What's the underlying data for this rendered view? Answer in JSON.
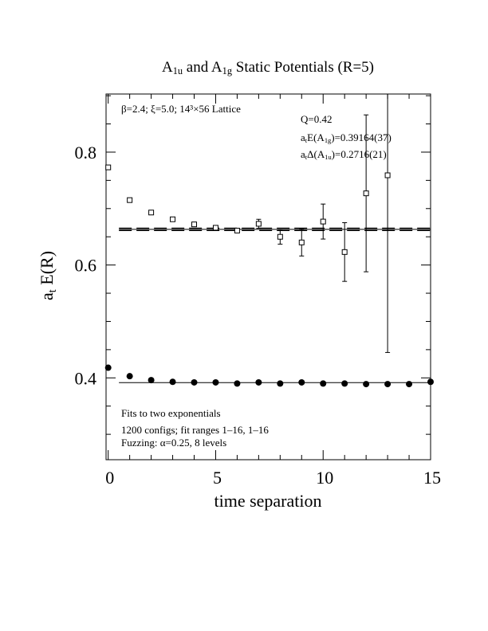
{
  "chart_data": {
    "type": "scatter",
    "title_parts": [
      "A",
      "1u",
      " and A",
      "1g",
      " Static Potentials (R=5)"
    ],
    "xlabel": "time separation",
    "ylabel_parts": [
      "a",
      "t",
      " E(R)"
    ],
    "xlim": [
      -0.1,
      15
    ],
    "ylim": [
      0.255,
      0.903
    ],
    "xticks": [
      0,
      5,
      10,
      15
    ],
    "yticks": [
      0.4,
      0.6,
      0.8
    ],
    "xminorticks": [
      1,
      2,
      3,
      4,
      6,
      7,
      8,
      9,
      11,
      12,
      13,
      14
    ],
    "yminorticks": [
      0.3,
      0.35,
      0.45,
      0.5,
      0.55,
      0.65,
      0.7,
      0.75,
      0.85,
      0.9
    ],
    "x": [
      0,
      1,
      2,
      3,
      4,
      5,
      6,
      7,
      8,
      9,
      10,
      11,
      12,
      13,
      14,
      15
    ],
    "series": [
      {
        "marker": "circle",
        "color": "#000000",
        "values": [
          0.418,
          0.403,
          0.396,
          0.393,
          0.392,
          0.392,
          0.39,
          0.392,
          0.39,
          0.392,
          0.39,
          0.39,
          0.389,
          0.389,
          0.389,
          0.393
        ]
      },
      {
        "marker": "square",
        "color": "#000000",
        "values": [
          0.773,
          0.715,
          0.693,
          0.681,
          0.672,
          0.666,
          0.661,
          0.673,
          0.65,
          0.64,
          0.677,
          0.623,
          0.727,
          0.759,
          null,
          null
        ],
        "errors": [
          null,
          null,
          null,
          null,
          null,
          null,
          null,
          0.008,
          0.013,
          0.024,
          0.031,
          0.052,
          0.139,
          0.314,
          null,
          null
        ]
      }
    ],
    "fits": [
      {
        "value": 0.39164,
        "xrange": [
          0.5,
          15
        ]
      },
      {
        "value": 0.66324,
        "error": 0.0021,
        "xrange": [
          0.5,
          15
        ]
      }
    ],
    "annotations": [
      {
        "parts": [
          "β=2.4; ξ=5.0; 14³×56 Lattice"
        ]
      },
      {
        "parts": [
          "Q=0.42"
        ]
      },
      {
        "parts": [
          "a",
          "t",
          "E(A",
          "1g",
          ")=0.39164(37)"
        ]
      },
      {
        "parts": [
          "a",
          "t",
          "Δ(A",
          "1u",
          ")=0.2716(21)"
        ]
      },
      {
        "parts": [
          "Fits to two exponentials"
        ]
      },
      {
        "parts": [
          "1200 configs; fit ranges 1–16, 1–16"
        ]
      },
      {
        "parts": [
          "Fuzzing: α=0.25, 8 levels"
        ]
      }
    ]
  }
}
